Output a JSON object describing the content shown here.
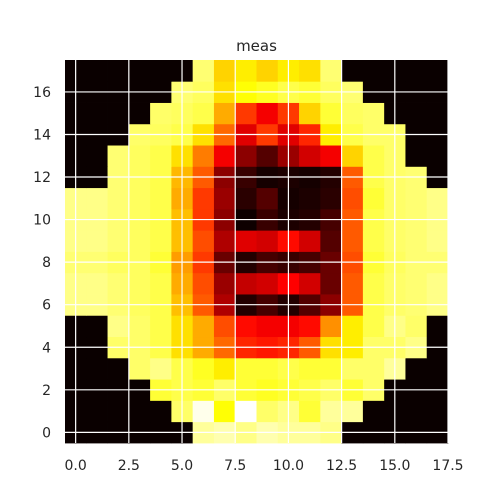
{
  "chart_data": {
    "type": "heatmap",
    "title": "meas",
    "colormap": "hot",
    "grid": true,
    "grid_color": "#ffffff",
    "x_ticks": [
      "0.0",
      "2.5",
      "5.0",
      "7.5",
      "10.0",
      "12.5",
      "15.0",
      "17.5"
    ],
    "x_tick_values": [
      0,
      2.5,
      5,
      7.5,
      10,
      12.5,
      15,
      17.5
    ],
    "y_ticks": [
      "0",
      "2",
      "4",
      "6",
      "8",
      "10",
      "12",
      "14",
      "16"
    ],
    "y_tick_values": [
      0,
      2,
      4,
      6,
      8,
      10,
      12,
      14,
      16
    ],
    "xlim": [
      -0.5,
      17.5
    ],
    "ylim": [
      17.5,
      -0.5
    ],
    "values": [
      [
        0,
        0,
        0,
        0,
        0,
        0,
        0.9,
        0.92,
        0.88,
        0.92,
        0.9,
        0.9,
        0.88,
        0,
        0,
        0,
        0,
        0
      ],
      [
        0,
        0,
        0,
        0,
        0,
        0.85,
        0.98,
        0.75,
        1.0,
        0.85,
        0.88,
        0.8,
        0.9,
        0.9,
        0,
        0,
        0,
        0
      ],
      [
        0,
        0,
        0,
        0,
        0.8,
        0.82,
        0.8,
        0.85,
        0.8,
        0.78,
        0.8,
        0.82,
        0.85,
        0.8,
        0.85,
        0,
        0,
        0
      ],
      [
        0,
        0,
        0,
        0.85,
        0.88,
        0.82,
        0.78,
        0.72,
        0.8,
        0.8,
        0.82,
        0.8,
        0.8,
        0.85,
        0.85,
        0.9,
        0,
        0
      ],
      [
        0,
        0,
        0.85,
        0.85,
        0.82,
        0.7,
        0.62,
        0.52,
        0.42,
        0.4,
        0.42,
        0.5,
        0.7,
        0.72,
        0.85,
        0.85,
        0.88,
        0
      ],
      [
        0,
        0,
        0.88,
        0.85,
        0.82,
        0.7,
        0.62,
        0.48,
        0.38,
        0.35,
        0.35,
        0.38,
        0.58,
        0.72,
        0.82,
        0.88,
        0.85,
        0
      ],
      [
        0.88,
        0.88,
        0.86,
        0.84,
        0.82,
        0.65,
        0.5,
        0.25,
        0.05,
        0.1,
        0.05,
        0.12,
        0.2,
        0.5,
        0.82,
        0.85,
        0.86,
        0.88
      ],
      [
        0.88,
        0.88,
        0.86,
        0.84,
        0.82,
        0.62,
        0.48,
        0.22,
        0.28,
        0.3,
        0.36,
        0.3,
        0.15,
        0.5,
        0.82,
        0.85,
        0.86,
        0.88
      ],
      [
        0.86,
        0.86,
        0.84,
        0.84,
        0.8,
        0.6,
        0.45,
        0.15,
        0.05,
        0.1,
        0.08,
        0.1,
        0.15,
        0.48,
        0.8,
        0.84,
        0.86,
        0.86
      ],
      [
        0.88,
        0.88,
        0.86,
        0.84,
        0.82,
        0.65,
        0.48,
        0.25,
        0.32,
        0.3,
        0.38,
        0.3,
        0.12,
        0.5,
        0.82,
        0.85,
        0.86,
        0.88
      ],
      [
        0.88,
        0.88,
        0.86,
        0.84,
        0.82,
        0.65,
        0.45,
        0.2,
        0.02,
        0.08,
        0.04,
        0.05,
        0.1,
        0.5,
        0.82,
        0.85,
        0.86,
        0.88
      ],
      [
        0.88,
        0.88,
        0.86,
        0.84,
        0.82,
        0.62,
        0.45,
        0.22,
        0.06,
        0.12,
        0.03,
        0.04,
        0.06,
        0.48,
        0.8,
        0.85,
        0.86,
        0.88
      ],
      [
        0,
        0,
        0.86,
        0.84,
        0.82,
        0.64,
        0.5,
        0.2,
        0.08,
        0.03,
        0.04,
        0.03,
        0.05,
        0.5,
        0.82,
        0.85,
        0.86,
        0
      ],
      [
        0,
        0,
        0.86,
        0.84,
        0.82,
        0.7,
        0.55,
        0.35,
        0.2,
        0.12,
        0.22,
        0.3,
        0.35,
        0.68,
        0.82,
        0.85,
        0,
        0
      ],
      [
        0,
        0,
        0,
        0.85,
        0.84,
        0.82,
        0.7,
        0.52,
        0.32,
        0.45,
        0.32,
        0.42,
        0.72,
        0.82,
        0.85,
        0.85,
        0,
        0
      ],
      [
        0,
        0,
        0,
        0,
        0.85,
        0.84,
        0.82,
        0.62,
        0.45,
        0.35,
        0.45,
        0.68,
        0.8,
        0.84,
        0.85,
        0,
        0,
        0
      ],
      [
        0,
        0,
        0,
        0,
        0,
        0.86,
        0.84,
        0.7,
        0.75,
        0.78,
        0.82,
        0.8,
        0.84,
        0.86,
        0,
        0,
        0,
        0
      ],
      [
        0,
        0,
        0,
        0,
        0,
        0,
        0.86,
        0.68,
        0.72,
        0.68,
        0.72,
        0.7,
        0.86,
        0,
        0,
        0,
        0,
        0
      ]
    ]
  }
}
